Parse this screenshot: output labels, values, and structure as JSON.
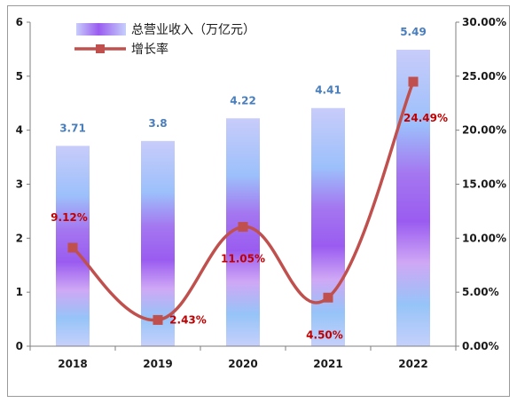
{
  "chart_data": {
    "type": "bar",
    "categories": [
      "2018",
      "2019",
      "2020",
      "2021",
      "2022"
    ],
    "series": [
      {
        "name": "总营业收入（万亿元）",
        "kind": "bar",
        "axis": "left",
        "values": [
          3.71,
          3.8,
          4.22,
          4.41,
          5.49
        ],
        "labels": [
          "3.71",
          "3.8",
          "4.22",
          "4.41",
          "5.49"
        ],
        "label_color": "#4a7ebb"
      },
      {
        "name": "增长率",
        "kind": "line",
        "axis": "right",
        "values": [
          9.12,
          2.43,
          11.05,
          4.5,
          24.49
        ],
        "labels": [
          "9.12%",
          "2.43%",
          "11.05%",
          "4.50%",
          "24.49%"
        ],
        "color": "#c0504d",
        "label_color": "#c00000"
      }
    ],
    "y_left": {
      "lim": [
        0,
        6
      ],
      "ticks": [
        "0",
        "1",
        "2",
        "3",
        "4",
        "5",
        "6"
      ]
    },
    "y_right": {
      "lim": [
        0,
        30
      ],
      "ticks": [
        "0.00%",
        "5.00%",
        "10.00%",
        "15.00%",
        "20.00%",
        "25.00%",
        "30.00%"
      ]
    },
    "legend_position": "top-left",
    "grid": false
  }
}
